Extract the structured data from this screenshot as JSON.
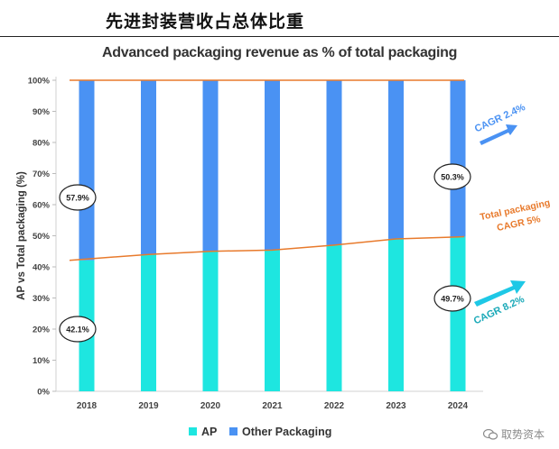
{
  "heading": "先进封装营收占总体比重",
  "watermark": "取势资本",
  "colors": {
    "ap": "#1ee6e0",
    "other": "#4a92f3",
    "line": "#e87a2c",
    "trend_up": "#1ec8e6",
    "callout_cagr": "#e87a2c"
  },
  "chart_data": {
    "type": "bar",
    "stacked": true,
    "title": "Advanced packaging revenue as % of total packaging",
    "xlabel": "",
    "ylabel": "AP vs Total packaging (%)",
    "ylim": [
      0,
      100
    ],
    "yticks": [
      "0%",
      "10%",
      "20%",
      "30%",
      "40%",
      "50%",
      "60%",
      "70%",
      "80%",
      "90%",
      "100%"
    ],
    "categories": [
      "2018",
      "2019",
      "2020",
      "2021",
      "2022",
      "2023",
      "2024"
    ],
    "series": [
      {
        "name": "AP",
        "values": [
          42.1,
          44,
          45,
          45.4,
          47,
          49,
          49.7
        ]
      },
      {
        "name": "Other Packaging",
        "values": [
          57.9,
          56,
          55,
          54.6,
          53,
          51,
          50.3
        ]
      }
    ],
    "legend": {
      "position": "bottom",
      "entries": [
        "AP",
        "Other Packaging"
      ]
    },
    "data_labels": [
      {
        "category": "2018",
        "series": "Other Packaging",
        "text": "57.9%"
      },
      {
        "category": "2018",
        "series": "AP",
        "text": "42.1%"
      },
      {
        "category": "2024",
        "series": "Other Packaging",
        "text": "50.3%"
      },
      {
        "category": "2024",
        "series": "AP",
        "text": "49.7%"
      }
    ],
    "annotations": [
      {
        "text": "CAGR 2.4%",
        "series": "Other Packaging"
      },
      {
        "text": "Total packaging",
        "series": "Total"
      },
      {
        "text": "CAGR 5%",
        "series": "Total"
      },
      {
        "text": "CAGR 8.2%",
        "series": "AP"
      }
    ]
  }
}
